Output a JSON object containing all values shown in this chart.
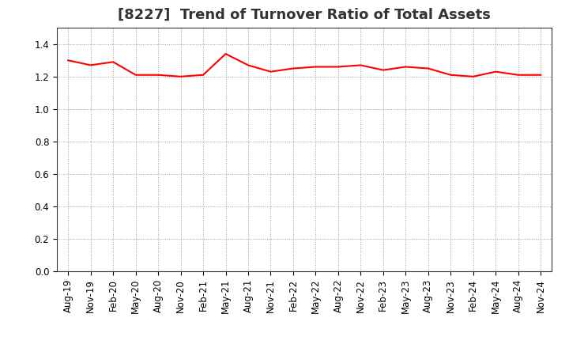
{
  "title": "[8227]  Trend of Turnover Ratio of Total Assets",
  "line_color": "#FF0000",
  "line_width": 1.5,
  "background_color": "#FFFFFF",
  "grid_color": "#999999",
  "ylim": [
    0.0,
    1.5
  ],
  "yticks": [
    0.0,
    0.2,
    0.4,
    0.6,
    0.8,
    1.0,
    1.2,
    1.4
  ],
  "x_labels": [
    "Aug-19",
    "Nov-19",
    "Feb-20",
    "May-20",
    "Aug-20",
    "Nov-20",
    "Feb-21",
    "May-21",
    "Aug-21",
    "Nov-21",
    "Feb-22",
    "May-22",
    "Aug-22",
    "Nov-22",
    "Feb-23",
    "May-23",
    "Aug-23",
    "Nov-23",
    "Feb-24",
    "May-24",
    "Aug-24",
    "Nov-24"
  ],
  "values": [
    1.3,
    1.27,
    1.29,
    1.21,
    1.21,
    1.2,
    1.21,
    1.34,
    1.27,
    1.23,
    1.25,
    1.26,
    1.26,
    1.27,
    1.24,
    1.26,
    1.25,
    1.21,
    1.2,
    1.23,
    1.21,
    1.21
  ],
  "title_fontsize": 13,
  "tick_fontsize": 8.5,
  "title_color": "#333333"
}
